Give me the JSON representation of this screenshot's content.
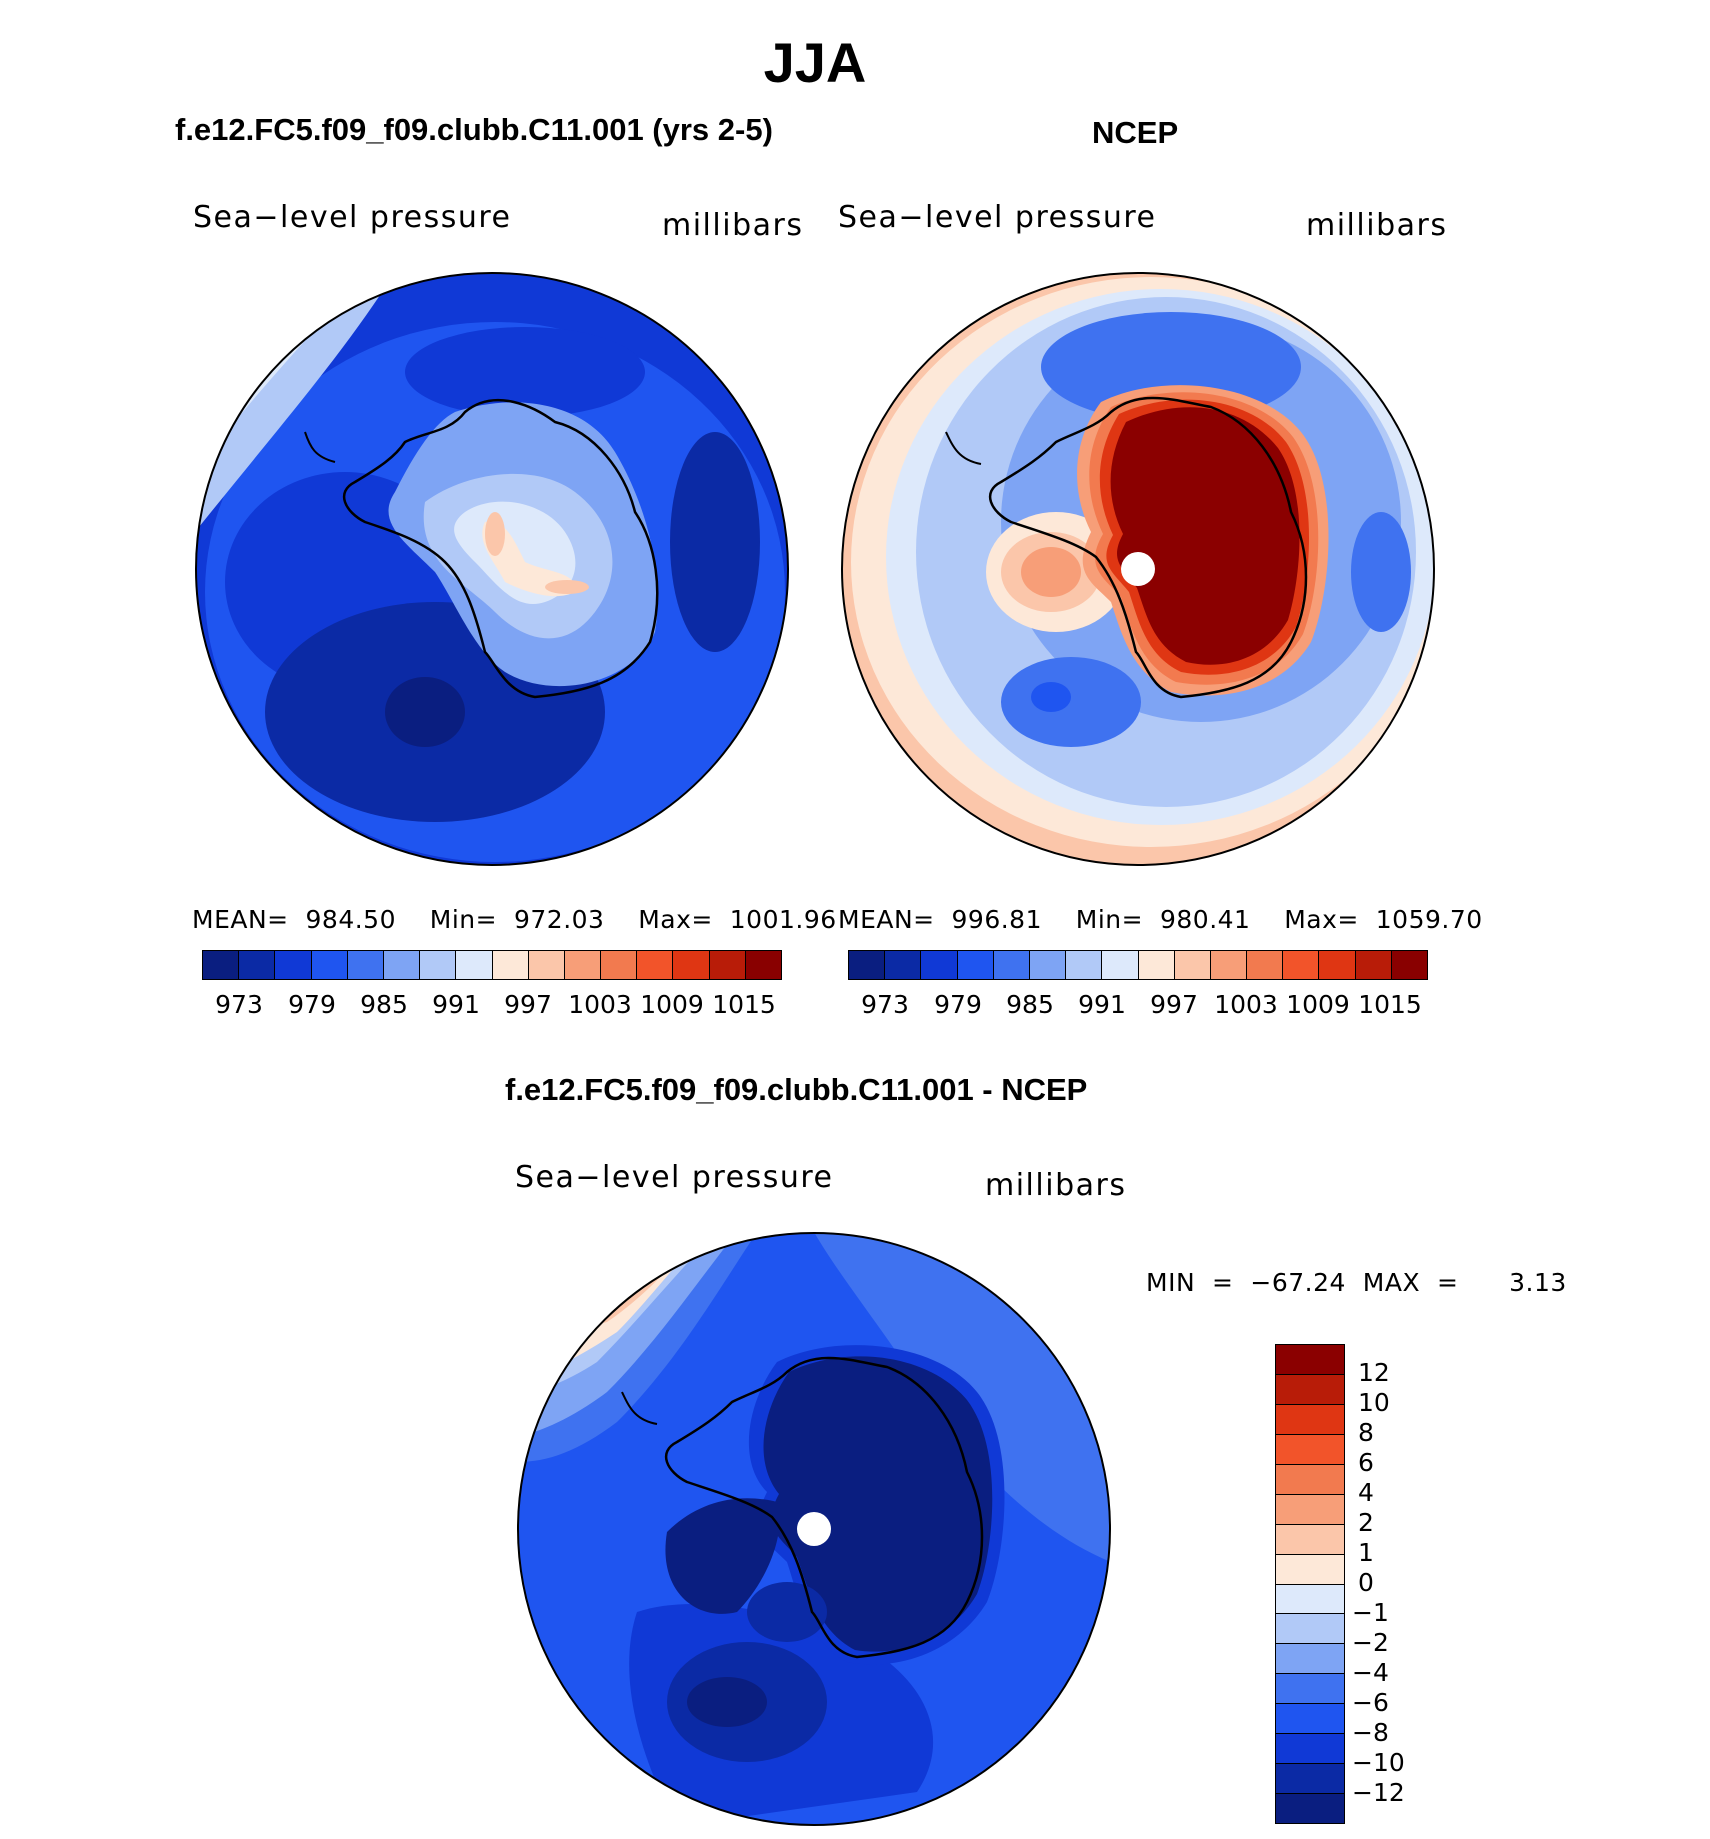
{
  "page": {
    "season": "JJA"
  },
  "panels": {
    "left": {
      "title": "f.e12.FC5.f09_f09.clubb.C11.001 (yrs 2-5)",
      "variable": "Sea−level pressure",
      "units": "millibars",
      "stats": "MEAN=  984.50    Min=  972.03    Max=  1001.96"
    },
    "right": {
      "title": "NCEP",
      "variable": "Sea−level pressure",
      "units": "millibars",
      "stats": "MEAN=  996.81    Min=  980.41    Max=  1059.70"
    },
    "diff": {
      "title": "f.e12.FC5.f09_f09.clubb.C11.001 - NCEP",
      "variable": "Sea−level pressure",
      "units": "millibars",
      "stats": "MIN  =  −67.24  MAX  =      3.13"
    }
  },
  "colorbars": {
    "abs": {
      "colors": [
        "#0a1e80",
        "#0b2aa5",
        "#1039d6",
        "#1f55f0",
        "#3f72f0",
        "#7ea4f4",
        "#b1c9f7",
        "#dde9fb",
        "#fde8d8",
        "#fbc6aa",
        "#f79e78",
        "#f27a4f",
        "#f2542a",
        "#df3613",
        "#b81c08",
        "#890000"
      ],
      "ticks": [
        "973",
        "979",
        "985",
        "991",
        "997",
        "1003",
        "1009",
        "1015"
      ]
    },
    "diff": {
      "colors": [
        "#8b0000",
        "#b81c08",
        "#df3613",
        "#f2542a",
        "#f27a4f",
        "#f79e78",
        "#fbc6aa",
        "#fde8d8",
        "#dde9fb",
        "#b1c9f7",
        "#7ea4f4",
        "#3f72f0",
        "#1f55f0",
        "#1039d6",
        "#0b2aa5",
        "#0a1e80"
      ],
      "ticks": [
        "12",
        "10",
        "8",
        "6",
        "4",
        "2",
        "1",
        "0",
        "−1",
        "−2",
        "−4",
        "−6",
        "−8",
        "−10",
        "−12"
      ]
    }
  }
}
